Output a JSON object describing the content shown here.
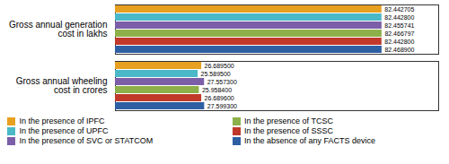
{
  "chart_data": {
    "type": "bar",
    "orientation": "horizontal",
    "categories": [
      "Gross annual generation\ncost in lakhs",
      "Gross annual wheeling\ncost in crores"
    ],
    "series": [
      {
        "name": "In the presence of IPFC",
        "color": "#E8A020",
        "values": [
          82.442705,
          26.6895
        ],
        "value_labels": [
          "82.442705",
          "26.689500"
        ]
      },
      {
        "name": "In the presence of UPFC",
        "color": "#4BB8C8",
        "values": [
          82.4428,
          25.5895
        ],
        "value_labels": [
          "82.442800",
          "25.589500"
        ]
      },
      {
        "name": "In the presence of SVC or STATCOM",
        "color": "#7B5EA7",
        "values": [
          82.455741,
          27.5573
        ],
        "value_labels": [
          "82.455741",
          "27.557300"
        ]
      },
      {
        "name": "In the presence of TCSC",
        "color": "#8DB04A",
        "values": [
          82.466797,
          25.9584
        ],
        "value_labels": [
          "82.466797",
          "25.958400"
        ]
      },
      {
        "name": "In the presence of SSSC",
        "color": "#C0392B",
        "values": [
          82.4428,
          26.6896
        ],
        "value_labels": [
          "82.442800",
          "26.689600"
        ]
      },
      {
        "name": "In the absence of any FACTS device",
        "color": "#2E5FA3",
        "values": [
          82.4689,
          27.5993
        ],
        "value_labels": [
          "82.468900",
          "27.599300"
        ]
      }
    ],
    "xlim": [
      0,
      100
    ],
    "tick_labels": "y",
    "data_labels": true,
    "grid": false,
    "legend": "lower left"
  }
}
